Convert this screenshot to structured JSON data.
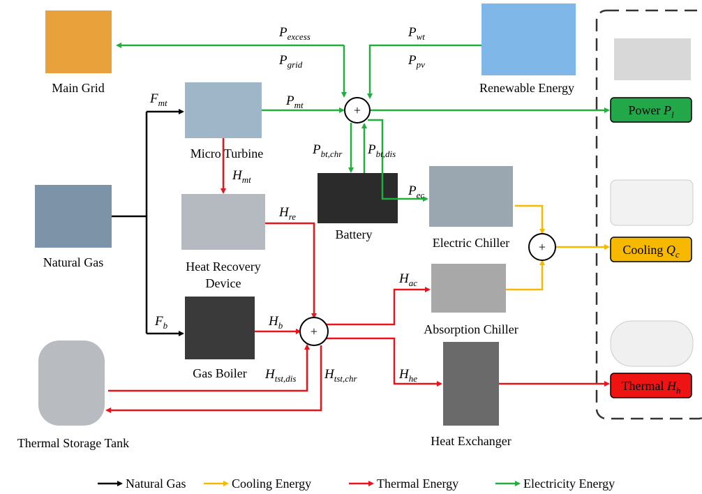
{
  "components": {
    "main_grid": "Main Grid",
    "micro_turbine": "Micro Turbine",
    "renewable": "Renewable Energy",
    "natural_gas": "Natural Gas",
    "heat_recovery": [
      "Heat Recovery",
      "Device"
    ],
    "battery": "Battery",
    "electric_chiller": "Electric Chiller",
    "absorption_chiller": "Absorption Chiller",
    "gas_boiler": "Gas Boiler",
    "thermal_storage": "Thermal Storage Tank",
    "heat_exchanger": "Heat Exchanger"
  },
  "loads": [
    {
      "text": "Power",
      "base": "P",
      "sub": "l"
    },
    {
      "text": "Cooling",
      "base": "Q",
      "sub": "c"
    },
    {
      "text": "Thermal",
      "base": "H",
      "sub": "h"
    }
  ],
  "sum_symbol": "+",
  "flows": [
    {
      "base": "P",
      "sub": "excess"
    },
    {
      "base": "P",
      "sub": "grid"
    },
    {
      "base": "P",
      "sub": "wt"
    },
    {
      "base": "P",
      "sub": "pv"
    },
    {
      "base": "F",
      "sub": "mt"
    },
    {
      "base": "P",
      "sub": "mt"
    },
    {
      "base": "H",
      "sub": "mt"
    },
    {
      "base": "H",
      "sub": "re"
    },
    {
      "base": "P",
      "sub": "bt,chr"
    },
    {
      "base": "P",
      "sub": "bt,dis"
    },
    {
      "base": "P",
      "sub": "ec"
    },
    {
      "base": "F",
      "sub": "b"
    },
    {
      "base": "H",
      "sub": "b"
    },
    {
      "base": "H",
      "sub": "tst,dis"
    },
    {
      "base": "H",
      "sub": "tst,chr"
    },
    {
      "base": "H",
      "sub": "ac"
    },
    {
      "base": "H",
      "sub": "he"
    }
  ],
  "legend": [
    "Natural Gas",
    "Cooling Energy",
    "Thermal Energy",
    "Electricity Energy"
  ]
}
